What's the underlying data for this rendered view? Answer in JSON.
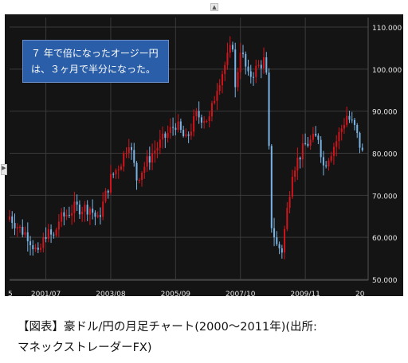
{
  "annotation": {
    "line1": "７ 年で倍になったオージー円",
    "line2": "は、３ヶ月で半分になった。"
  },
  "caption": {
    "line1": "【図表】豪ドル/円の月足チャート(2000〜2011年)(出所:",
    "line2": "マネックストレーダーFX)"
  },
  "colors": {
    "background": "#141414",
    "up": "#d3141c",
    "down": "#7ab4e4",
    "grid": "#3a3a3a",
    "axis_text": "#e6e6e6",
    "annotation_bg": "#2b5ea8"
  },
  "chart_data": {
    "type": "candlestick",
    "title": "",
    "xlabel": "",
    "ylabel": "",
    "ylim": [
      50,
      112
    ],
    "grid": true,
    "y_ticks": [
      "110.000",
      "100.000",
      "90.000",
      "80.000",
      "70.000",
      "60.000",
      "50.000"
    ],
    "x_ticks": [
      "2001/07",
      "2003/08",
      "2005/09",
      "2007/10",
      "2009/11"
    ],
    "x_edge_labels": [
      "5",
      "20"
    ],
    "series": [
      {
        "frequency": "monthly",
        "period": "2000-2011",
        "close_path": [
          [
            "2000/05",
            65
          ],
          [
            "2000/09",
            62
          ],
          [
            "2000/12",
            60.5
          ],
          [
            "2001/03",
            57
          ],
          [
            "2001/04",
            55.5
          ],
          [
            "2001/07",
            61
          ],
          [
            "2001/10",
            60
          ],
          [
            "2001/12",
            64
          ],
          [
            "2002/06",
            67
          ],
          [
            "2002/12",
            67
          ],
          [
            "2003/03",
            64
          ],
          [
            "2003/08",
            74
          ],
          [
            "2003/12",
            78
          ],
          [
            "2004/03",
            83
          ],
          [
            "2004/06",
            74
          ],
          [
            "2004/12",
            80
          ],
          [
            "2005/09",
            87
          ],
          [
            "2006/01",
            83
          ],
          [
            "2006/05",
            89
          ],
          [
            "2006/10",
            88
          ],
          [
            "2007/01",
            96
          ],
          [
            "2007/07",
            106
          ],
          [
            "2007/08",
            95
          ],
          [
            "2007/10",
            105
          ],
          [
            "2008/01",
            98
          ],
          [
            "2008/07",
            102
          ],
          [
            "2008/08",
            98
          ],
          [
            "2008/10",
            63
          ],
          [
            "2008/12",
            58
          ],
          [
            "2009/02",
            57
          ],
          [
            "2009/06",
            76
          ],
          [
            "2009/11",
            82
          ],
          [
            "2010/04",
            84
          ],
          [
            "2010/06",
            77
          ],
          [
            "2010/11",
            83
          ],
          [
            "2011/03",
            89
          ],
          [
            "2011/06",
            86
          ],
          [
            "2011/09",
            80
          ]
        ]
      }
    ]
  }
}
